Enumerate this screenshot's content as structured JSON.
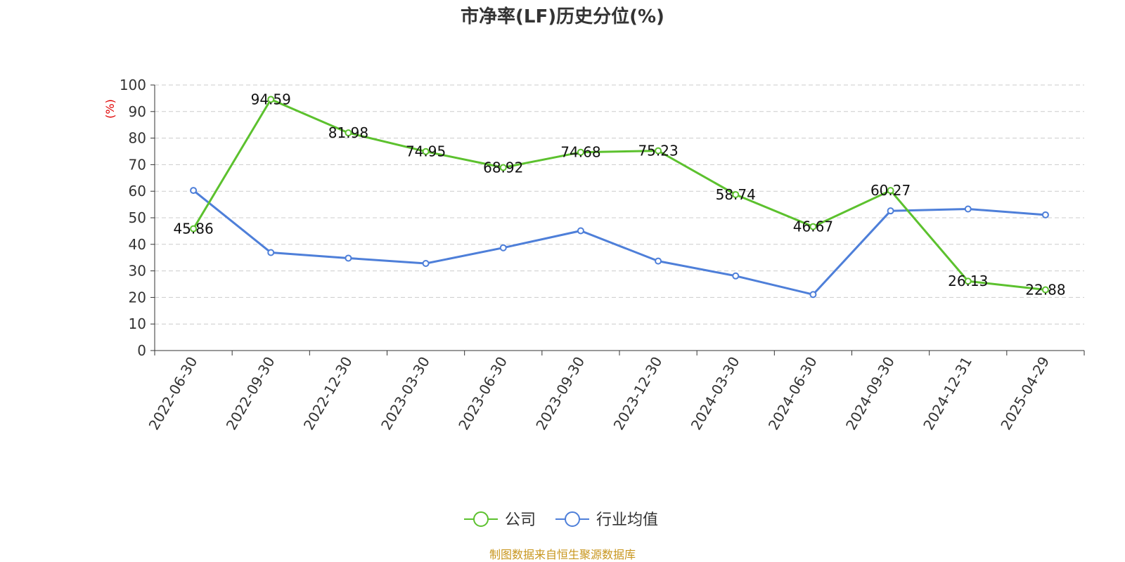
{
  "chart_data": {
    "type": "line",
    "title": "市净率(LF)历史分位(%)",
    "ylabel": "(%)",
    "ylim": [
      0,
      100
    ],
    "yticks": [
      0,
      10,
      20,
      30,
      40,
      50,
      60,
      70,
      80,
      90,
      100
    ],
    "categories": [
      "2022-06-30",
      "2022-09-30",
      "2022-12-30",
      "2023-03-30",
      "2023-06-30",
      "2023-09-30",
      "2023-12-30",
      "2024-03-30",
      "2024-06-30",
      "2024-09-30",
      "2024-12-31",
      "2025-04-29"
    ],
    "series": [
      {
        "name": "公司",
        "color": "#5cc12e",
        "show_labels": true,
        "values": [
          45.86,
          94.59,
          81.98,
          74.95,
          68.92,
          74.68,
          75.23,
          58.74,
          46.67,
          60.27,
          26.13,
          22.88
        ]
      },
      {
        "name": "行业均值",
        "color": "#4e7fd9",
        "show_labels": false,
        "values": [
          60.3,
          36.9,
          34.8,
          32.8,
          38.7,
          45.1,
          33.7,
          28.1,
          21.1,
          52.6,
          53.3,
          51.1
        ]
      }
    ],
    "grid": true,
    "legend_position": "bottom-center"
  },
  "source": "制图数据来自恒生聚源数据库",
  "colors": {
    "axis": "#333333",
    "grid": "#cccccc",
    "unit": "#e00000",
    "source": "#c8961e"
  }
}
